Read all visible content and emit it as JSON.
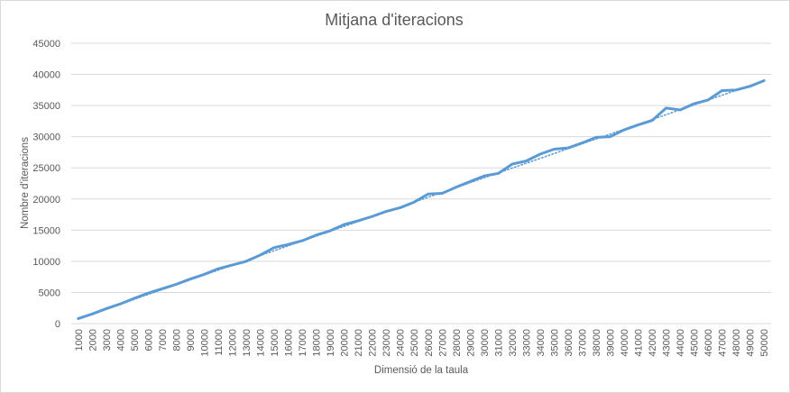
{
  "chart_data": {
    "type": "line",
    "title": "Mitjana d'iteracions",
    "xlabel": "Dimensió de la taula",
    "ylabel": "Nombre d'iteracions",
    "ylim": [
      0,
      45000
    ],
    "yticks": [
      "0",
      "5000",
      "10000",
      "15000",
      "20000",
      "25000",
      "30000",
      "35000",
      "40000",
      "45000"
    ],
    "categories": [
      "1000",
      "2000",
      "3000",
      "4000",
      "5000",
      "6000",
      "7000",
      "8000",
      "9000",
      "10000",
      "11000",
      "12000",
      "13000",
      "14000",
      "15000",
      "16000",
      "17000",
      "18000",
      "19000",
      "20000",
      "21000",
      "22000",
      "23000",
      "24000",
      "25000",
      "26000",
      "27000",
      "28000",
      "29000",
      "30000",
      "31000",
      "32000",
      "33000",
      "34000",
      "35000",
      "36000",
      "37000",
      "38000",
      "39000",
      "40000",
      "41000",
      "42000",
      "43000",
      "44000",
      "45000",
      "46000",
      "47000",
      "48000",
      "49000",
      "50000"
    ],
    "grid": true,
    "legend": "none",
    "series": [
      {
        "style": "solid",
        "color": "#5b9bd5",
        "values": [
          800,
          1550,
          2400,
          3150,
          4050,
          4900,
          5600,
          6300,
          7150,
          7900,
          8800,
          9400,
          10000,
          11000,
          12200,
          12700,
          13300,
          14200,
          14900,
          15900,
          16500,
          17200,
          18000,
          18600,
          19500,
          20800,
          20900,
          21900,
          22800,
          23700,
          24100,
          25600,
          26100,
          27200,
          28000,
          28200,
          29000,
          29900,
          30000,
          31100,
          31900,
          32600,
          34600,
          34300,
          35300,
          35900,
          37400,
          37500,
          38100,
          39000
        ]
      },
      {
        "style": "dotted",
        "color": "#5b9bd5",
        "values": [
          780,
          1560,
          2340,
          3120,
          3900,
          4680,
          5460,
          6240,
          7020,
          7800,
          8580,
          9360,
          10140,
          10920,
          11700,
          12480,
          13260,
          14040,
          14820,
          15600,
          16380,
          17160,
          17940,
          18720,
          19500,
          20280,
          21060,
          21840,
          22620,
          23400,
          24180,
          24960,
          25740,
          26520,
          27300,
          28080,
          28860,
          29640,
          30420,
          31200,
          31980,
          32760,
          33540,
          34320,
          35100,
          35880,
          36660,
          37440,
          38220,
          39000
        ]
      }
    ]
  }
}
